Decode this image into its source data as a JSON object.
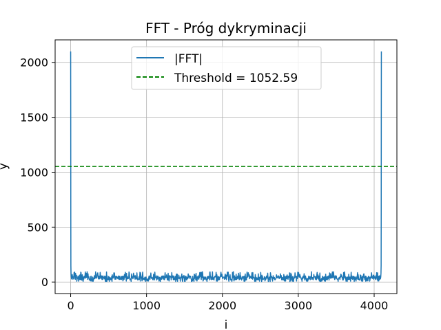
{
  "chart_data": {
    "type": "line",
    "title": "FFT - Próg dykryminacji",
    "xlabel": "i",
    "ylabel": "y",
    "xlim": [
      -204.75,
      4299.75
    ],
    "ylim": [
      -105,
      2205
    ],
    "xticks": [
      0,
      1000,
      2000,
      3000,
      4000
    ],
    "yticks": [
      0,
      500,
      1000,
      1500,
      2000
    ],
    "grid": true,
    "legend_position": "upper center",
    "colors": {
      "fft": "#1f77b4",
      "threshold": "#008000"
    },
    "series": [
      {
        "name": "|FFT|",
        "style": "solid",
        "n_points": 4096,
        "noise_floor_typical": [
          10,
          90
        ],
        "peaks": [
          {
            "x": 0,
            "y": 2100
          },
          {
            "x": 4095,
            "y": 2100
          }
        ],
        "segments": [
          {
            "x": [
              0,
              1,
              2,
              3,
              5,
              8,
              12,
              20
            ],
            "y": [
              2100,
              1500,
              600,
              150,
              80,
              45,
              30,
              25
            ]
          },
          {
            "x": [
              4075,
              4083,
              4087,
              4090,
              4092,
              4093,
              4094,
              4095
            ],
            "y": [
              25,
              30,
              45,
              80,
              150,
              600,
              1500,
              2100
            ]
          }
        ]
      },
      {
        "name": "Threshold = 1052.59",
        "style": "dashed",
        "y": 1052.59
      }
    ]
  }
}
